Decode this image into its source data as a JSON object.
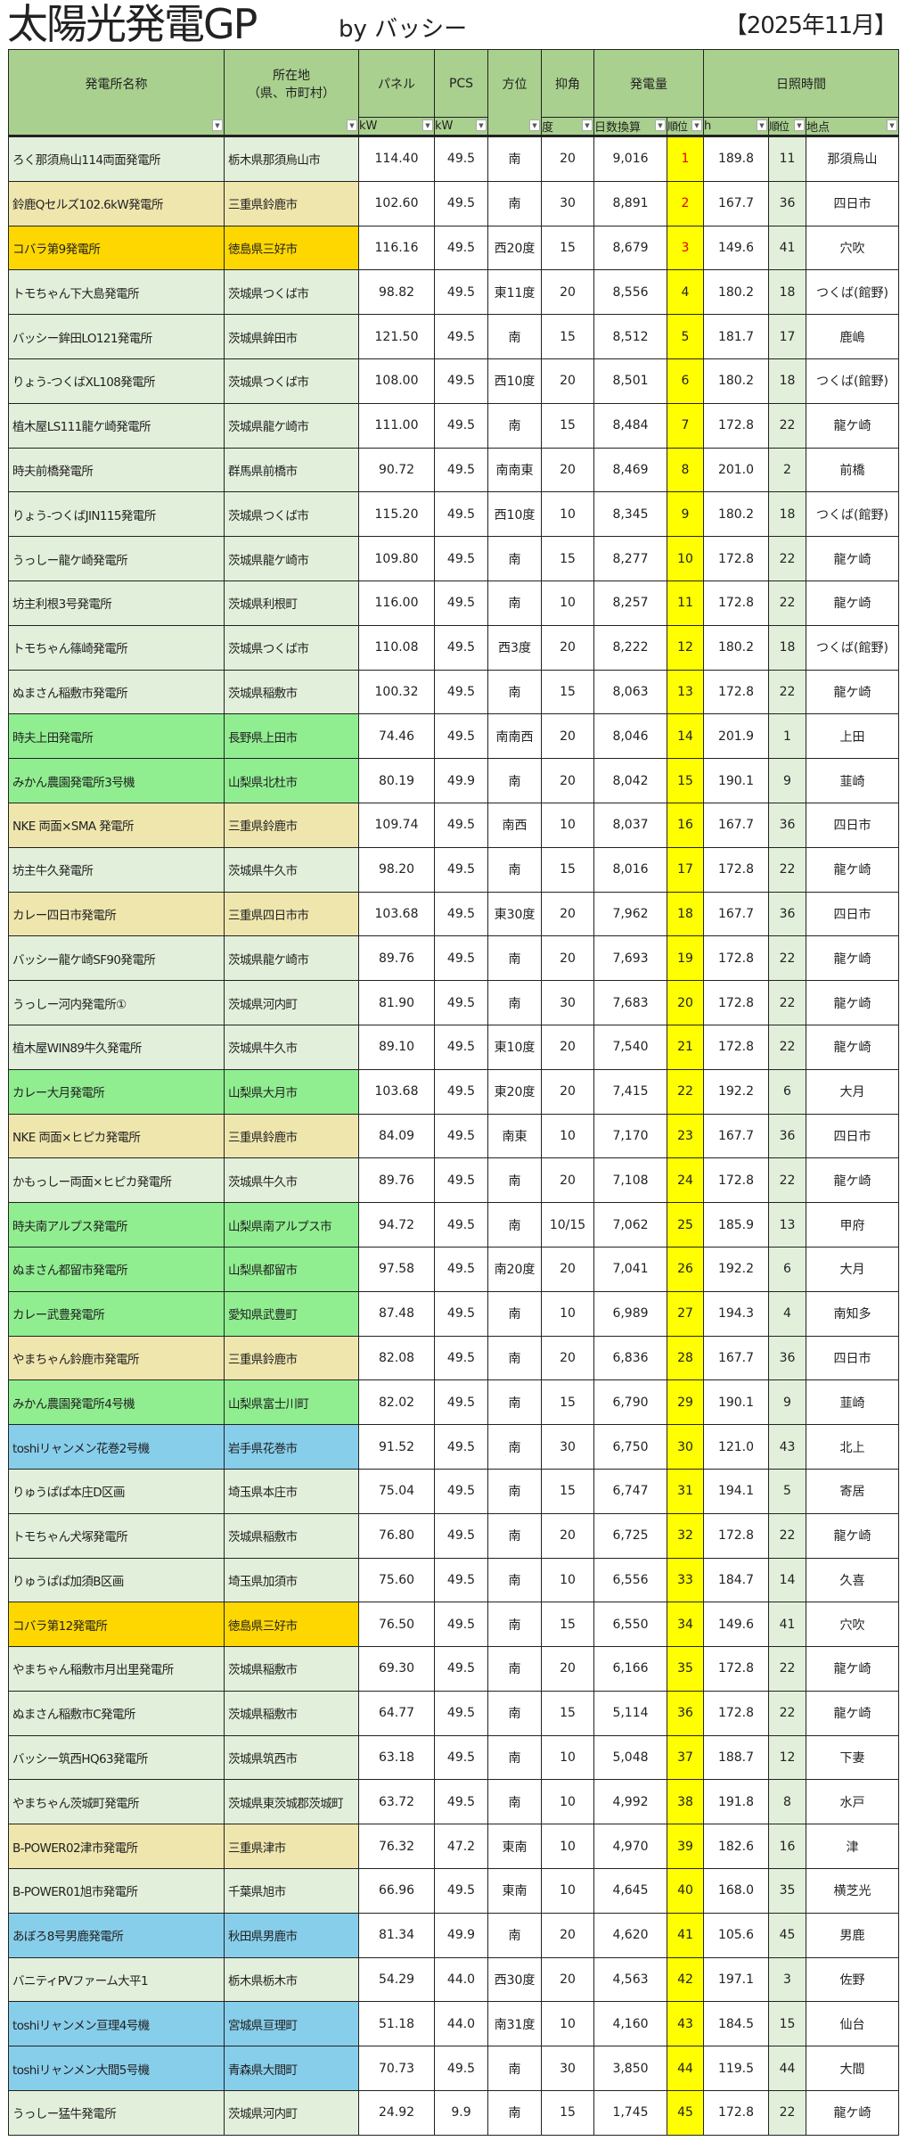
{
  "header": {
    "title": "太陽光発電GP",
    "byline": "by バッシー",
    "period": "【2025年11月】"
  },
  "columns": {
    "name": "発電所名称",
    "location_line1": "所在地",
    "location_line2": "（県、市町村）",
    "panel": "パネル",
    "pcs": "PCS",
    "direction": "方位",
    "tilt": "抑角",
    "generation": "発電量",
    "sunshine": "日照時間",
    "panel_unit": "kW",
    "pcs_unit": "kW",
    "tilt_unit": "度",
    "gen_sub": "日数換算",
    "gen_rank_sub": "順位",
    "sun_sub": "h",
    "sun_rank_sub": "順位",
    "sun_point_sub": "地点"
  },
  "colors": {
    "header": "#a9d08e",
    "rank": "#ffff00",
    "top_rank_text": "#e00000",
    "g": "#e2efda",
    "y": "#efe6ad",
    "o": "#ffd700",
    "G": "#90ee90",
    "b": "#87ceeb"
  },
  "rows": [
    {
      "name": "ろく那須烏山114両面発電所",
      "loc": "栃木県那須烏山市",
      "panel": "114.40",
      "pcs": "49.5",
      "dir": "南",
      "tilt": "20",
      "gen": "9,016",
      "rank": "1",
      "hours": "189.8",
      "srank": "11",
      "point": "那須烏山",
      "c": "g"
    },
    {
      "name": "鈴鹿Qセルズ102.6kW発電所",
      "loc": "三重県鈴鹿市",
      "panel": "102.60",
      "pcs": "49.5",
      "dir": "南",
      "tilt": "30",
      "gen": "8,891",
      "rank": "2",
      "hours": "167.7",
      "srank": "36",
      "point": "四日市",
      "c": "y"
    },
    {
      "name": "コバラ第9発電所",
      "loc": "徳島県三好市",
      "panel": "116.16",
      "pcs": "49.5",
      "dir": "西20度",
      "tilt": "15",
      "gen": "8,679",
      "rank": "3",
      "hours": "149.6",
      "srank": "41",
      "point": "穴吹",
      "c": "o"
    },
    {
      "name": "トモちゃん下大島発電所",
      "loc": "茨城県つくば市",
      "panel": "98.82",
      "pcs": "49.5",
      "dir": "東11度",
      "tilt": "20",
      "gen": "8,556",
      "rank": "4",
      "hours": "180.2",
      "srank": "18",
      "point": "つくば(館野)",
      "c": "g"
    },
    {
      "name": "バッシー鉾田LO121発電所",
      "loc": "茨城県鉾田市",
      "panel": "121.50",
      "pcs": "49.5",
      "dir": "南",
      "tilt": "15",
      "gen": "8,512",
      "rank": "5",
      "hours": "181.7",
      "srank": "17",
      "point": "鹿嶋",
      "c": "g"
    },
    {
      "name": "りょう-つくばXL108発電所",
      "loc": "茨城県つくば市",
      "panel": "108.00",
      "pcs": "49.5",
      "dir": "西10度",
      "tilt": "20",
      "gen": "8,501",
      "rank": "6",
      "hours": "180.2",
      "srank": "18",
      "point": "つくば(館野)",
      "c": "g"
    },
    {
      "name": "植木屋LS111龍ケ崎発電所",
      "loc": "茨城県龍ケ崎市",
      "panel": "111.00",
      "pcs": "49.5",
      "dir": "南",
      "tilt": "15",
      "gen": "8,484",
      "rank": "7",
      "hours": "172.8",
      "srank": "22",
      "point": "龍ケ崎",
      "c": "g"
    },
    {
      "name": "時夫前橋発電所",
      "loc": "群馬県前橋市",
      "panel": "90.72",
      "pcs": "49.5",
      "dir": "南南東",
      "tilt": "20",
      "gen": "8,469",
      "rank": "8",
      "hours": "201.0",
      "srank": "2",
      "point": "前橋",
      "c": "g"
    },
    {
      "name": "りょう-つくばJIN115発電所",
      "loc": "茨城県つくば市",
      "panel": "115.20",
      "pcs": "49.5",
      "dir": "西10度",
      "tilt": "10",
      "gen": "8,345",
      "rank": "9",
      "hours": "180.2",
      "srank": "18",
      "point": "つくば(館野)",
      "c": "g"
    },
    {
      "name": "うっしー龍ケ崎発電所",
      "loc": "茨城県龍ケ崎市",
      "panel": "109.80",
      "pcs": "49.5",
      "dir": "南",
      "tilt": "15",
      "gen": "8,277",
      "rank": "10",
      "hours": "172.8",
      "srank": "22",
      "point": "龍ケ崎",
      "c": "g"
    },
    {
      "name": "坊主利根3号発電所",
      "loc": "茨城県利根町",
      "panel": "116.00",
      "pcs": "49.5",
      "dir": "南",
      "tilt": "10",
      "gen": "8,257",
      "rank": "11",
      "hours": "172.8",
      "srank": "22",
      "point": "龍ケ崎",
      "c": "g"
    },
    {
      "name": "トモちゃん篠崎発電所",
      "loc": "茨城県つくば市",
      "panel": "110.08",
      "pcs": "49.5",
      "dir": "西3度",
      "tilt": "20",
      "gen": "8,222",
      "rank": "12",
      "hours": "180.2",
      "srank": "18",
      "point": "つくば(館野)",
      "c": "g"
    },
    {
      "name": "ぬまさん稲敷市発電所",
      "loc": "茨城県稲敷市",
      "panel": "100.32",
      "pcs": "49.5",
      "dir": "南",
      "tilt": "15",
      "gen": "8,063",
      "rank": "13",
      "hours": "172.8",
      "srank": "22",
      "point": "龍ケ崎",
      "c": "g"
    },
    {
      "name": "時夫上田発電所",
      "loc": "長野県上田市",
      "panel": "74.46",
      "pcs": "49.5",
      "dir": "南南西",
      "tilt": "20",
      "gen": "8,046",
      "rank": "14",
      "hours": "201.9",
      "srank": "1",
      "point": "上田",
      "c": "G"
    },
    {
      "name": "みかん農園発電所3号機",
      "loc": "山梨県北杜市",
      "panel": "80.19",
      "pcs": "49.9",
      "dir": "南",
      "tilt": "20",
      "gen": "8,042",
      "rank": "15",
      "hours": "190.1",
      "srank": "9",
      "point": "韮崎",
      "c": "G"
    },
    {
      "name": "NKE 両面×SMA 発電所",
      "loc": "三重県鈴鹿市",
      "panel": "109.74",
      "pcs": "49.5",
      "dir": "南西",
      "tilt": "10",
      "gen": "8,037",
      "rank": "16",
      "hours": "167.7",
      "srank": "36",
      "point": "四日市",
      "c": "y"
    },
    {
      "name": "坊主牛久発電所",
      "loc": "茨城県牛久市",
      "panel": "98.20",
      "pcs": "49.5",
      "dir": "南",
      "tilt": "15",
      "gen": "8,016",
      "rank": "17",
      "hours": "172.8",
      "srank": "22",
      "point": "龍ケ崎",
      "c": "g"
    },
    {
      "name": "カレー四日市発電所",
      "loc": "三重県四日市市",
      "panel": "103.68",
      "pcs": "49.5",
      "dir": "東30度",
      "tilt": "20",
      "gen": "7,962",
      "rank": "18",
      "hours": "167.7",
      "srank": "36",
      "point": "四日市",
      "c": "y"
    },
    {
      "name": "バッシー龍ケ崎SF90発電所",
      "loc": "茨城県龍ケ崎市",
      "panel": "89.76",
      "pcs": "49.5",
      "dir": "南",
      "tilt": "20",
      "gen": "7,693",
      "rank": "19",
      "hours": "172.8",
      "srank": "22",
      "point": "龍ケ崎",
      "c": "g"
    },
    {
      "name": "うっしー河内発電所①",
      "loc": "茨城県河内町",
      "panel": "81.90",
      "pcs": "49.5",
      "dir": "南",
      "tilt": "30",
      "gen": "7,683",
      "rank": "20",
      "hours": "172.8",
      "srank": "22",
      "point": "龍ケ崎",
      "c": "g"
    },
    {
      "name": "植木屋WIN89牛久発電所",
      "loc": "茨城県牛久市",
      "panel": "89.10",
      "pcs": "49.5",
      "dir": "東10度",
      "tilt": "20",
      "gen": "7,540",
      "rank": "21",
      "hours": "172.8",
      "srank": "22",
      "point": "龍ケ崎",
      "c": "g"
    },
    {
      "name": "カレー大月発電所",
      "loc": "山梨県大月市",
      "panel": "103.68",
      "pcs": "49.5",
      "dir": "東20度",
      "tilt": "20",
      "gen": "7,415",
      "rank": "22",
      "hours": "192.2",
      "srank": "6",
      "point": "大月",
      "c": "G"
    },
    {
      "name": "NKE 両面×ヒピカ発電所",
      "loc": "三重県鈴鹿市",
      "panel": "84.09",
      "pcs": "49.5",
      "dir": "南東",
      "tilt": "10",
      "gen": "7,170",
      "rank": "23",
      "hours": "167.7",
      "srank": "36",
      "point": "四日市",
      "c": "y"
    },
    {
      "name": "かもっしー両面×ヒピカ発電所",
      "loc": "茨城県牛久市",
      "panel": "89.76",
      "pcs": "49.5",
      "dir": "南",
      "tilt": "20",
      "gen": "7,108",
      "rank": "24",
      "hours": "172.8",
      "srank": "22",
      "point": "龍ケ崎",
      "c": "g"
    },
    {
      "name": "時夫南アルプス発電所",
      "loc": "山梨県南アルプス市",
      "panel": "94.72",
      "pcs": "49.5",
      "dir": "南",
      "tilt": "10/15",
      "gen": "7,062",
      "rank": "25",
      "hours": "185.9",
      "srank": "13",
      "point": "甲府",
      "c": "G"
    },
    {
      "name": "ぬまさん都留市発電所",
      "loc": "山梨県都留市",
      "panel": "97.58",
      "pcs": "49.5",
      "dir": "南20度",
      "tilt": "20",
      "gen": "7,041",
      "rank": "26",
      "hours": "192.2",
      "srank": "6",
      "point": "大月",
      "c": "G"
    },
    {
      "name": "カレー武豊発電所",
      "loc": "愛知県武豊町",
      "panel": "87.48",
      "pcs": "49.5",
      "dir": "南",
      "tilt": "10",
      "gen": "6,989",
      "rank": "27",
      "hours": "194.3",
      "srank": "4",
      "point": "南知多",
      "c": "G"
    },
    {
      "name": "やまちゃん鈴鹿市発電所",
      "loc": "三重県鈴鹿市",
      "panel": "82.08",
      "pcs": "49.5",
      "dir": "南",
      "tilt": "20",
      "gen": "6,836",
      "rank": "28",
      "hours": "167.7",
      "srank": "36",
      "point": "四日市",
      "c": "y"
    },
    {
      "name": "みかん農園発電所4号機",
      "loc": "山梨県富士川町",
      "panel": "82.02",
      "pcs": "49.5",
      "dir": "南",
      "tilt": "15",
      "gen": "6,790",
      "rank": "29",
      "hours": "190.1",
      "srank": "9",
      "point": "韮崎",
      "c": "G"
    },
    {
      "name": "toshiリャンメン花巻2号機",
      "loc": "岩手県花巻市",
      "panel": "91.52",
      "pcs": "49.5",
      "dir": "南",
      "tilt": "30",
      "gen": "6,750",
      "rank": "30",
      "hours": "121.0",
      "srank": "43",
      "point": "北上",
      "c": "b"
    },
    {
      "name": "りゅうぱぱ本庄D区画",
      "loc": "埼玉県本庄市",
      "panel": "75.04",
      "pcs": "49.5",
      "dir": "南",
      "tilt": "15",
      "gen": "6,747",
      "rank": "31",
      "hours": "194.1",
      "srank": "5",
      "point": "寄居",
      "c": "g"
    },
    {
      "name": "トモちゃん犬塚発電所",
      "loc": "茨城県稲敷市",
      "panel": "76.80",
      "pcs": "49.5",
      "dir": "南",
      "tilt": "20",
      "gen": "6,725",
      "rank": "32",
      "hours": "172.8",
      "srank": "22",
      "point": "龍ケ崎",
      "c": "g"
    },
    {
      "name": "りゅうぱぱ加須B区画",
      "loc": "埼玉県加須市",
      "panel": "75.60",
      "pcs": "49.5",
      "dir": "南",
      "tilt": "10",
      "gen": "6,556",
      "rank": "33",
      "hours": "184.7",
      "srank": "14",
      "point": "久喜",
      "c": "g"
    },
    {
      "name": "コバラ第12発電所",
      "loc": "徳島県三好市",
      "panel": "76.50",
      "pcs": "49.5",
      "dir": "南",
      "tilt": "15",
      "gen": "6,550",
      "rank": "34",
      "hours": "149.6",
      "srank": "41",
      "point": "穴吹",
      "c": "o"
    },
    {
      "name": "やまちゃん稲敷市月出里発電所",
      "loc": "茨城県稲敷市",
      "panel": "69.30",
      "pcs": "49.5",
      "dir": "南",
      "tilt": "20",
      "gen": "6,166",
      "rank": "35",
      "hours": "172.8",
      "srank": "22",
      "point": "龍ケ崎",
      "c": "g"
    },
    {
      "name": "ぬまさん稲敷市C発電所",
      "loc": "茨城県稲敷市",
      "panel": "64.77",
      "pcs": "49.5",
      "dir": "南",
      "tilt": "15",
      "gen": "5,114",
      "rank": "36",
      "hours": "172.8",
      "srank": "22",
      "point": "龍ケ崎",
      "c": "g"
    },
    {
      "name": "バッシー筑西HQ63発電所",
      "loc": "茨城県筑西市",
      "panel": "63.18",
      "pcs": "49.5",
      "dir": "南",
      "tilt": "10",
      "gen": "5,048",
      "rank": "37",
      "hours": "188.7",
      "srank": "12",
      "point": "下妻",
      "c": "g"
    },
    {
      "name": "やまちゃん茨城町発電所",
      "loc": "茨城県東茨城郡茨城町",
      "panel": "63.72",
      "pcs": "49.5",
      "dir": "南",
      "tilt": "10",
      "gen": "4,992",
      "rank": "38",
      "hours": "191.8",
      "srank": "8",
      "point": "水戸",
      "c": "g"
    },
    {
      "name": "B-POWER02津市発電所",
      "loc": "三重県津市",
      "panel": "76.32",
      "pcs": "47.2",
      "dir": "東南",
      "tilt": "10",
      "gen": "4,970",
      "rank": "39",
      "hours": "182.6",
      "srank": "16",
      "point": "津",
      "c": "y"
    },
    {
      "name": "B-POWER01旭市発電所",
      "loc": "千葉県旭市",
      "panel": "66.96",
      "pcs": "49.5",
      "dir": "東南",
      "tilt": "10",
      "gen": "4,645",
      "rank": "40",
      "hours": "168.0",
      "srank": "35",
      "point": "横芝光",
      "c": "g"
    },
    {
      "name": "あぼろ8号男鹿発電所",
      "loc": "秋田県男鹿市",
      "panel": "81.34",
      "pcs": "49.9",
      "dir": "南",
      "tilt": "20",
      "gen": "4,620",
      "rank": "41",
      "hours": "105.6",
      "srank": "45",
      "point": "男鹿",
      "c": "b"
    },
    {
      "name": "バニティPVファーム大平1",
      "loc": "栃木県栃木市",
      "panel": "54.29",
      "pcs": "44.0",
      "dir": "西30度",
      "tilt": "20",
      "gen": "4,563",
      "rank": "42",
      "hours": "197.1",
      "srank": "3",
      "point": "佐野",
      "c": "g"
    },
    {
      "name": "toshiリャンメン亘理4号機",
      "loc": "宮城県亘理町",
      "panel": "51.18",
      "pcs": "44.0",
      "dir": "南31度",
      "tilt": "10",
      "gen": "4,160",
      "rank": "43",
      "hours": "184.5",
      "srank": "15",
      "point": "仙台",
      "c": "b"
    },
    {
      "name": "toshiリャンメン大間5号機",
      "loc": "青森県大間町",
      "panel": "70.73",
      "pcs": "49.5",
      "dir": "南",
      "tilt": "30",
      "gen": "3,850",
      "rank": "44",
      "hours": "119.5",
      "srank": "44",
      "point": "大間",
      "c": "b"
    },
    {
      "name": "うっしー猛牛発電所",
      "loc": "茨城県河内町",
      "panel": "24.92",
      "pcs": "9.9",
      "dir": "南",
      "tilt": "15",
      "gen": "1,745",
      "rank": "45",
      "hours": "172.8",
      "srank": "22",
      "point": "龍ケ崎",
      "c": "g"
    }
  ]
}
